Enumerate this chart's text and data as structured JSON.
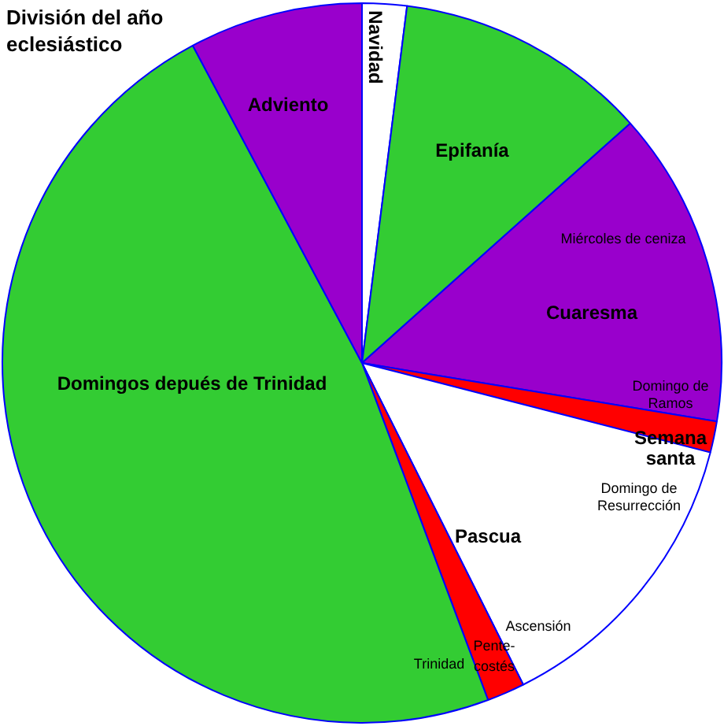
{
  "chart_data": {
    "type": "pie",
    "title": "División del año eclesiástico",
    "categories": [
      "Navidad",
      "Epifanía",
      "Cuaresma",
      "Semana santa",
      "Pascua",
      "Pente-costés",
      "Domingos depués de Trinidad",
      "Adviento"
    ],
    "values": [
      2,
      11.4,
      14.2,
      1.4,
      13.6,
      1.7,
      47.9,
      7.8
    ],
    "colors": [
      "#ffffff",
      "#33cc33",
      "#9900cc",
      "#ff0000",
      "#ffffff",
      "#ff0000",
      "#33cc33",
      "#9900cc"
    ],
    "annotations": [
      "Miércoles de ceniza",
      "Domingo de Ramos",
      "Domingo de Resurrección",
      "Ascensión",
      "Trinidad"
    ],
    "legend": false
  }
}
